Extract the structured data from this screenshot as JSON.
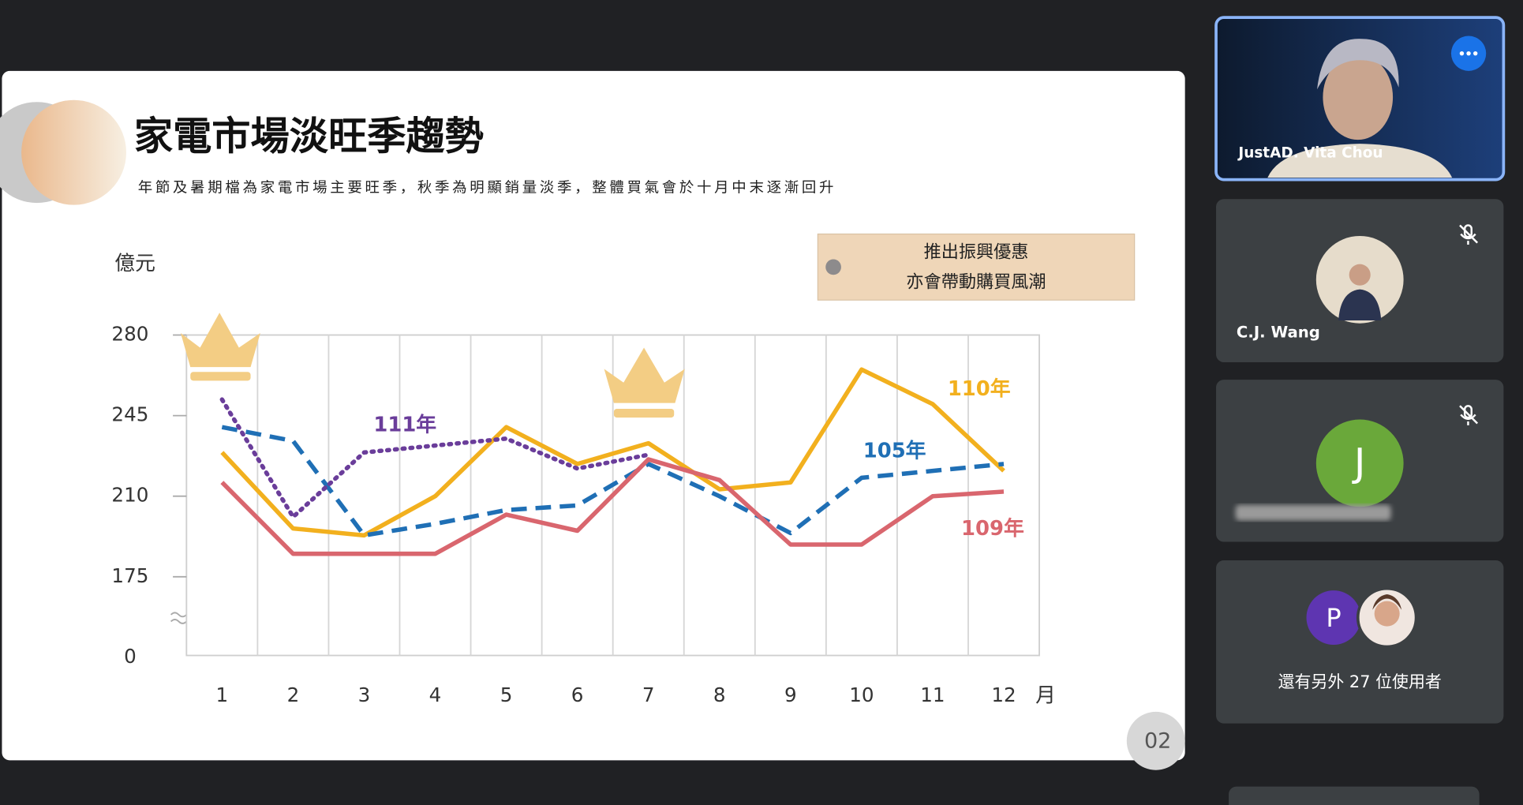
{
  "slide": {
    "title": "家電市場淡旺季趨勢",
    "subtitle": "年節及暑期檔為家電市場主要旺季，秋季為明顯銷量淡季，整體買氣會於十月中末逐漸回升",
    "callout": [
      "推出振興優惠",
      "亦會帶動購買風潮"
    ],
    "page_number": "02",
    "chart_data": {
      "type": "line",
      "y_unit": "億元",
      "x_unit": "月",
      "y_break_label": "0",
      "categories": [
        "1",
        "2",
        "3",
        "4",
        "5",
        "6",
        "7",
        "8",
        "9",
        "10",
        "11",
        "12"
      ],
      "ylim": [
        140,
        280
      ],
      "yticks": [
        175,
        210,
        245,
        280
      ],
      "grid": true,
      "series": [
        {
          "name": "110年",
          "color": "#f2b01e",
          "style": "solid",
          "values": [
            229,
            196,
            193,
            210,
            240,
            224,
            233,
            213,
            216,
            265,
            250,
            221
          ]
        },
        {
          "name": "105年",
          "color": "#1f6fb5",
          "style": "dashed",
          "values": [
            240,
            234,
            193,
            198,
            204,
            206,
            224,
            210,
            194,
            218,
            221,
            224
          ]
        },
        {
          "name": "109年",
          "color": "#d9666e",
          "style": "solid",
          "values": [
            216,
            185,
            185,
            185,
            202,
            195,
            226,
            217,
            189,
            189,
            210,
            212
          ]
        },
        {
          "name": "111年",
          "color": "#6a3d9a",
          "style": "dotted",
          "values": [
            252,
            201,
            229,
            232,
            235,
            222,
            228,
            null,
            null,
            null,
            null,
            null
          ]
        }
      ]
    }
  },
  "participants": {
    "speaker": "JustAD. Vita Chou",
    "tiles": [
      {
        "name": "C.J. Wang"
      },
      {
        "initial": "J"
      }
    ],
    "others": {
      "initial": "P",
      "text": "還有另外 27 位使用者"
    }
  }
}
